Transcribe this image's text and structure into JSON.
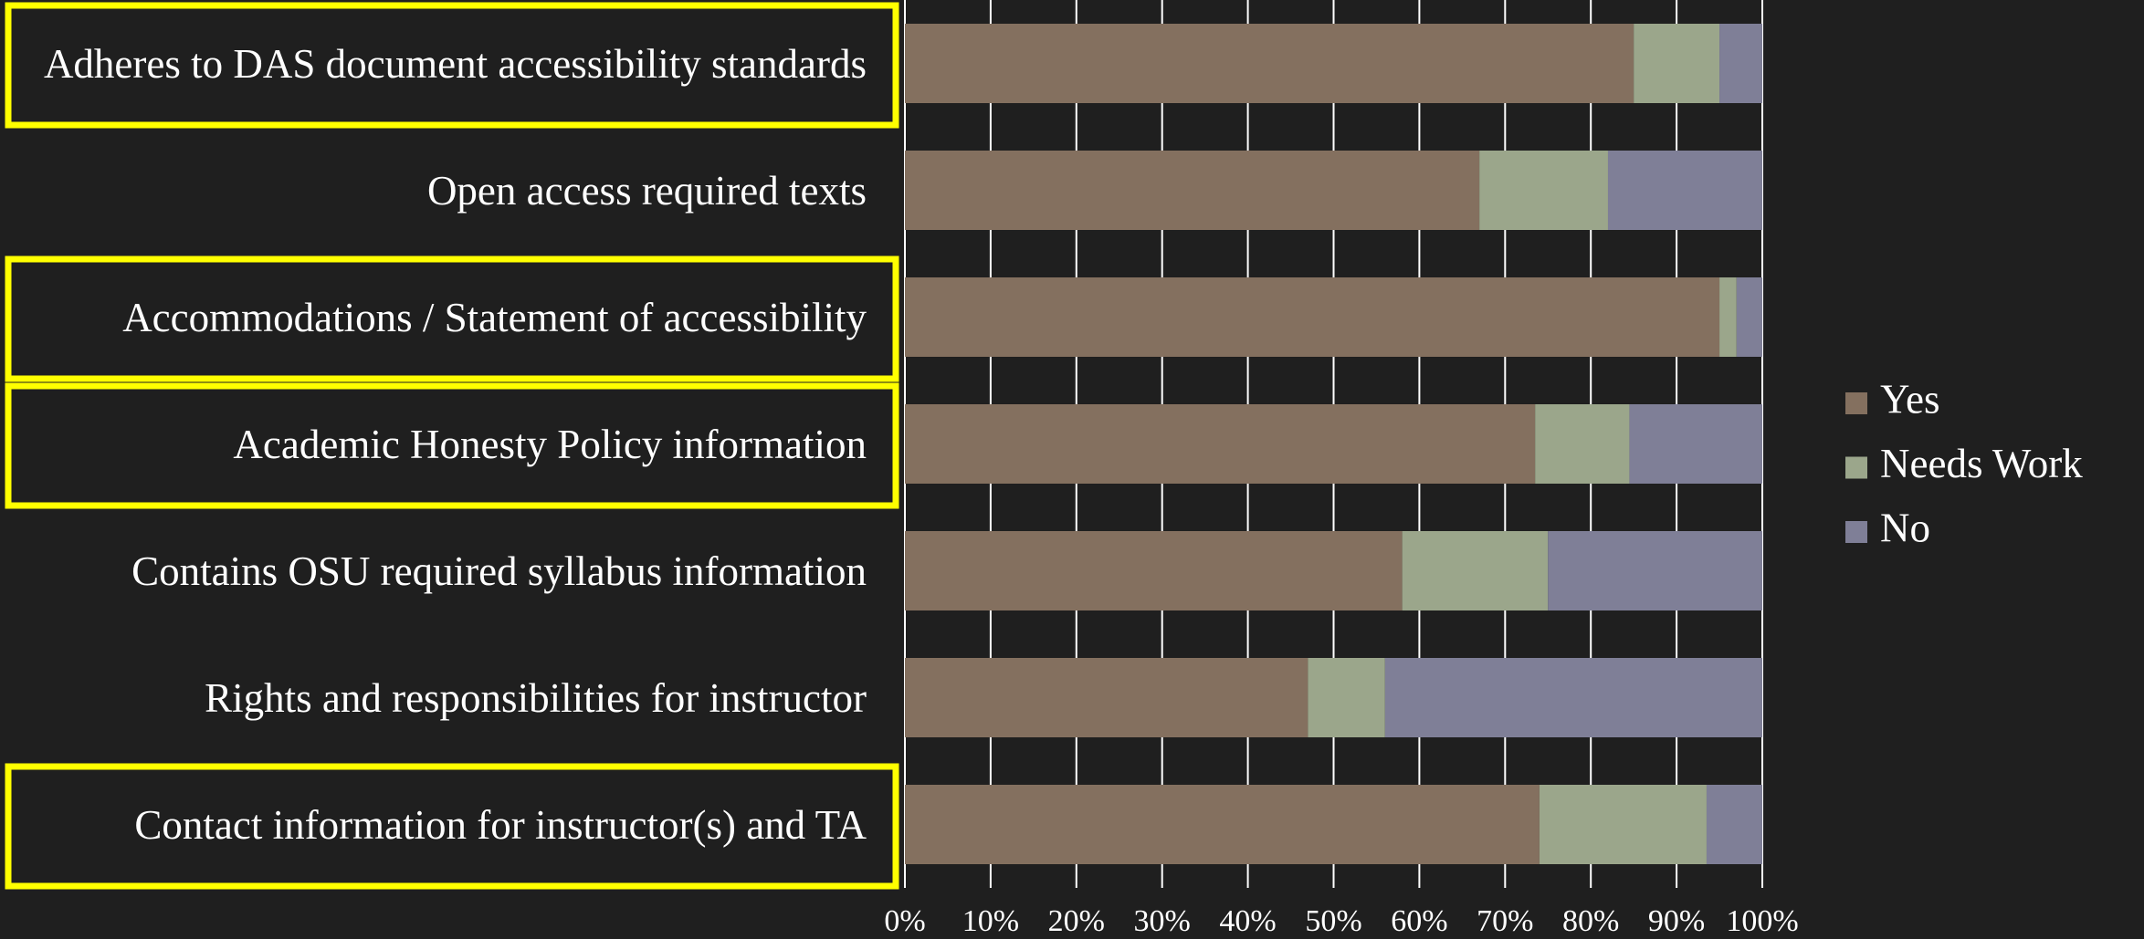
{
  "chart_data": {
    "type": "stacked_barh",
    "categories": [
      "Adheres to DAS document accessibility standards",
      "Open access required texts",
      "Accommodations / Statement of accessibility",
      "Academic Honesty Policy information",
      "Contains OSU required syllabus information",
      "Rights and responsibilities for instructor",
      "Contact information for instructor(s) and TA"
    ],
    "series": [
      {
        "name": "Yes",
        "color": "#84705f",
        "values": [
          85,
          67,
          95,
          73.5,
          58,
          47,
          74
        ]
      },
      {
        "name": "Needs Work",
        "color": "#9ba68b",
        "values": [
          10,
          15,
          2,
          11,
          17,
          9,
          19.5
        ]
      },
      {
        "name": "No",
        "color": "#7f7f97",
        "values": [
          5,
          18,
          3,
          15.5,
          25,
          44,
          6.5
        ]
      }
    ],
    "xlim": [
      0,
      100
    ],
    "xticks": [
      {
        "value": 0,
        "label": "0%"
      },
      {
        "value": 10,
        "label": "10%"
      },
      {
        "value": 20,
        "label": "20%"
      },
      {
        "value": 30,
        "label": "30%"
      },
      {
        "value": 40,
        "label": "40%"
      },
      {
        "value": 50,
        "label": "50%"
      },
      {
        "value": 60,
        "label": "60%"
      },
      {
        "value": 70,
        "label": "70%"
      },
      {
        "value": 80,
        "label": "80%"
      },
      {
        "value": 90,
        "label": "90%"
      },
      {
        "value": 100,
        "label": "100%"
      }
    ],
    "grid": true,
    "legend": "right",
    "highlight": [
      true,
      false,
      true,
      true,
      false,
      false,
      true
    ],
    "highlight_color": "#ffff00"
  }
}
